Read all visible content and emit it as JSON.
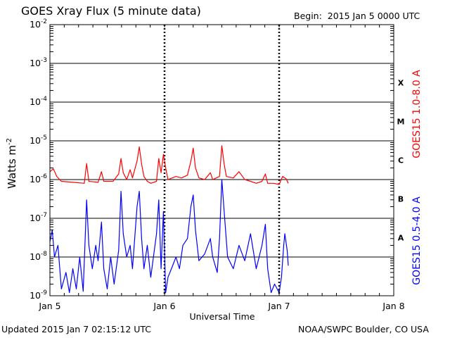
{
  "header": {
    "title": "GOES Xray Flux (5 minute data)",
    "begin_label": "Begin:",
    "begin_value": "2015 Jan 5 0000 UTC"
  },
  "footer": {
    "updated": "Updated 2015 Jan  7 02:15:12 UTC",
    "credit": "NOAA/SWPC Boulder, CO USA"
  },
  "colors": {
    "long": "#ff0000",
    "short": "#0000ff",
    "axis": "#000000"
  },
  "chart_data": {
    "type": "line",
    "ylabel": "Watts m",
    "ylabel_exponent": "-2",
    "xlabel": "Universal Time",
    "yscale": "log",
    "ylim": [
      1e-09,
      0.01
    ],
    "ytick_exponents": [
      -9,
      -8,
      -7,
      -6,
      -5,
      -4,
      -3,
      -2
    ],
    "ytick_base": "10",
    "xlim_days": [
      0,
      3
    ],
    "x_ticks": [
      {
        "day": 0,
        "label": "Jan 5"
      },
      {
        "day": 1,
        "label": "Jan 6"
      },
      {
        "day": 2,
        "label": "Jan 7"
      },
      {
        "day": 3,
        "label": "Jan 8"
      }
    ],
    "flare_classes": [
      {
        "label": "A",
        "from": 1e-08,
        "to": 1e-07
      },
      {
        "label": "B",
        "from": 1e-07,
        "to": 1e-06
      },
      {
        "label": "C",
        "from": 1e-06,
        "to": 1e-05
      },
      {
        "label": "M",
        "from": 1e-05,
        "to": 0.0001
      },
      {
        "label": "X",
        "from": 0.0001,
        "to": 0.001
      }
    ],
    "grid_horizontal": true,
    "series": [
      {
        "name": "GOES15 1.0-8.0 A",
        "key": "long",
        "points": [
          [
            0.0,
            1.6e-06
          ],
          [
            0.03,
            1.9e-06
          ],
          [
            0.06,
            1.2e-06
          ],
          [
            0.1,
            9e-07
          ],
          [
            0.2,
            8.5e-07
          ],
          [
            0.3,
            8e-07
          ],
          [
            0.32,
            2.6e-06
          ],
          [
            0.34,
            9e-07
          ],
          [
            0.42,
            8.5e-07
          ],
          [
            0.45,
            1.6e-06
          ],
          [
            0.47,
            9e-07
          ],
          [
            0.55,
            9e-07
          ],
          [
            0.6,
            1.4e-06
          ],
          [
            0.62,
            3.5e-06
          ],
          [
            0.64,
            1.5e-06
          ],
          [
            0.67,
            1e-06
          ],
          [
            0.7,
            1.8e-06
          ],
          [
            0.72,
            1.1e-06
          ],
          [
            0.76,
            3e-06
          ],
          [
            0.78,
            7e-06
          ],
          [
            0.8,
            2.5e-06
          ],
          [
            0.82,
            1.2e-06
          ],
          [
            0.85,
            9e-07
          ],
          [
            0.88,
            8e-07
          ],
          [
            0.93,
            9e-07
          ],
          [
            0.95,
            3.5e-06
          ],
          [
            0.97,
            1.5e-06
          ],
          [
            0.99,
            4.5e-06
          ],
          [
            1.01,
            2e-06
          ],
          [
            1.03,
            1e-06
          ],
          [
            1.1,
            1.2e-06
          ],
          [
            1.15,
            1.1e-06
          ],
          [
            1.2,
            1.3e-06
          ],
          [
            1.23,
            3e-06
          ],
          [
            1.25,
            6.5e-06
          ],
          [
            1.27,
            2e-06
          ],
          [
            1.3,
            1.1e-06
          ],
          [
            1.35,
            1e-06
          ],
          [
            1.4,
            1.5e-06
          ],
          [
            1.42,
            1e-06
          ],
          [
            1.48,
            1.2e-06
          ],
          [
            1.5,
            7.5e-06
          ],
          [
            1.52,
            2.5e-06
          ],
          [
            1.54,
            1.2e-06
          ],
          [
            1.6,
            1.1e-06
          ],
          [
            1.65,
            1.6e-06
          ],
          [
            1.7,
            1e-06
          ],
          [
            1.75,
            9e-07
          ],
          [
            1.8,
            8e-07
          ],
          [
            1.85,
            9e-07
          ],
          [
            1.88,
            1.4e-06
          ],
          [
            1.9,
            8e-07
          ],
          [
            1.95,
            8e-07
          ],
          [
            2.0,
            7.5e-07
          ],
          [
            2.03,
            1.2e-06
          ],
          [
            2.06,
            1.05e-06
          ],
          [
            2.08,
            8e-07
          ]
        ]
      },
      {
        "name": "GOES15 0.5-4.0 A",
        "key": "short",
        "points": [
          [
            0.0,
            2.5e-08
          ],
          [
            0.02,
            5e-08
          ],
          [
            0.04,
            1e-08
          ],
          [
            0.07,
            2e-08
          ],
          [
            0.1,
            1.5e-09
          ],
          [
            0.14,
            4e-09
          ],
          [
            0.17,
            1.2e-09
          ],
          [
            0.2,
            5e-09
          ],
          [
            0.23,
            1.5e-09
          ],
          [
            0.26,
            1e-08
          ],
          [
            0.29,
            1.3e-09
          ],
          [
            0.32,
            3e-07
          ],
          [
            0.34,
            2e-08
          ],
          [
            0.37,
            5e-09
          ],
          [
            0.4,
            2e-08
          ],
          [
            0.42,
            8e-09
          ],
          [
            0.45,
            8e-08
          ],
          [
            0.47,
            5e-09
          ],
          [
            0.5,
            1.5e-09
          ],
          [
            0.53,
            1e-08
          ],
          [
            0.56,
            2e-09
          ],
          [
            0.6,
            1.5e-08
          ],
          [
            0.62,
            5e-07
          ],
          [
            0.64,
            4e-08
          ],
          [
            0.67,
            1e-08
          ],
          [
            0.7,
            2e-08
          ],
          [
            0.72,
            5e-09
          ],
          [
            0.76,
            2e-07
          ],
          [
            0.78,
            5e-07
          ],
          [
            0.8,
            3e-08
          ],
          [
            0.82,
            5e-09
          ],
          [
            0.85,
            2e-08
          ],
          [
            0.88,
            3e-09
          ],
          [
            0.93,
            4e-08
          ],
          [
            0.95,
            3e-07
          ],
          [
            0.97,
            5e-09
          ],
          [
            0.99,
            1.5e-07
          ],
          [
            1.01,
            1.2e-09
          ],
          [
            1.03,
            3e-09
          ],
          [
            1.06,
            5e-09
          ],
          [
            1.1,
            1e-08
          ],
          [
            1.13,
            5e-09
          ],
          [
            1.16,
            2e-08
          ],
          [
            1.2,
            3e-08
          ],
          [
            1.23,
            2e-07
          ],
          [
            1.25,
            4e-07
          ],
          [
            1.27,
            5e-08
          ],
          [
            1.3,
            8e-09
          ],
          [
            1.35,
            1.2e-08
          ],
          [
            1.4,
            3e-08
          ],
          [
            1.42,
            1e-08
          ],
          [
            1.46,
            4e-09
          ],
          [
            1.48,
            3e-08
          ],
          [
            1.5,
            1e-06
          ],
          [
            1.52,
            1.5e-07
          ],
          [
            1.55,
            1e-08
          ],
          [
            1.6,
            5e-09
          ],
          [
            1.65,
            2e-08
          ],
          [
            1.7,
            8e-09
          ],
          [
            1.75,
            4e-08
          ],
          [
            1.8,
            5e-09
          ],
          [
            1.85,
            2e-08
          ],
          [
            1.88,
            7e-08
          ],
          [
            1.9,
            5e-09
          ],
          [
            1.93,
            1.2e-09
          ],
          [
            1.96,
            2e-09
          ],
          [
            2.0,
            1.2e-09
          ],
          [
            2.02,
            3e-09
          ],
          [
            2.04,
            2e-08
          ],
          [
            2.05,
            4e-08
          ],
          [
            2.07,
            1.5e-08
          ],
          [
            2.08,
            6e-09
          ]
        ]
      }
    ]
  }
}
